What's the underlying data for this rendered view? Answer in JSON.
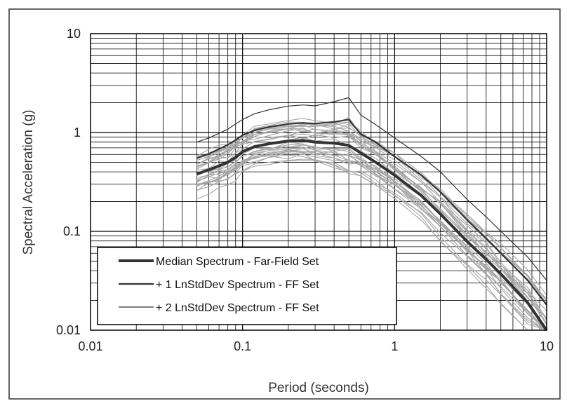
{
  "chart_data": {
    "type": "line",
    "xlabel": "Period (seconds)",
    "ylabel": "Spectral Acceleration (g)",
    "x_scale": "log",
    "y_scale": "log",
    "xlim": [
      0.01,
      10
    ],
    "ylim": [
      0.01,
      10
    ],
    "x_ticks": [
      "0.01",
      "0.1",
      "1",
      "10"
    ],
    "y_ticks": [
      "10",
      "1",
      "0.1",
      "0.01"
    ],
    "grid": true,
    "legend_position": "bottom-left",
    "x": [
      0.05,
      0.06,
      0.07,
      0.08,
      0.09,
      0.1,
      0.12,
      0.15,
      0.2,
      0.25,
      0.3,
      0.4,
      0.5,
      0.6,
      0.75,
      1.0,
      1.5,
      2.0,
      3.0,
      4.0,
      5.0,
      7.5,
      10.0
    ],
    "series": [
      {
        "name": "Median Spectrum - Far-Field Set",
        "values": [
          0.38,
          0.42,
          0.46,
          0.5,
          0.56,
          0.64,
          0.72,
          0.77,
          0.82,
          0.83,
          0.8,
          0.78,
          0.74,
          0.62,
          0.5,
          0.37,
          0.23,
          0.15,
          0.079,
          0.052,
          0.037,
          0.019,
          0.01
        ],
        "color": "#333333",
        "width": "thick"
      },
      {
        "name": "+ 1 LnStdDev Spectrum - FF Set",
        "values": [
          0.55,
          0.61,
          0.68,
          0.75,
          0.84,
          0.94,
          1.05,
          1.14,
          1.22,
          1.25,
          1.23,
          1.28,
          1.35,
          0.96,
          0.8,
          0.57,
          0.37,
          0.25,
          0.13,
          0.085,
          0.06,
          0.032,
          0.018
        ],
        "color": "#333333",
        "width": "medium"
      },
      {
        "name": "+ 2 LnStdDev Spectrum - FF Set",
        "values": [
          0.8,
          0.88,
          0.98,
          1.08,
          1.22,
          1.35,
          1.55,
          1.7,
          1.85,
          1.9,
          1.86,
          2.05,
          2.25,
          1.5,
          1.2,
          0.88,
          0.57,
          0.4,
          0.21,
          0.14,
          0.1,
          0.055,
          0.032
        ],
        "color": "#333333",
        "width": "thin"
      }
    ],
    "record_color": "#a6a6a6",
    "legend": [
      {
        "label": "Median Spectrum - Far-Field Set",
        "style": "thick"
      },
      {
        "label": "+ 1 LnStdDev Spectrum - FF Set",
        "style": "medium"
      },
      {
        "label": "+ 2 LnStdDev Spectrum - FF Set",
        "style": "thin"
      }
    ]
  }
}
